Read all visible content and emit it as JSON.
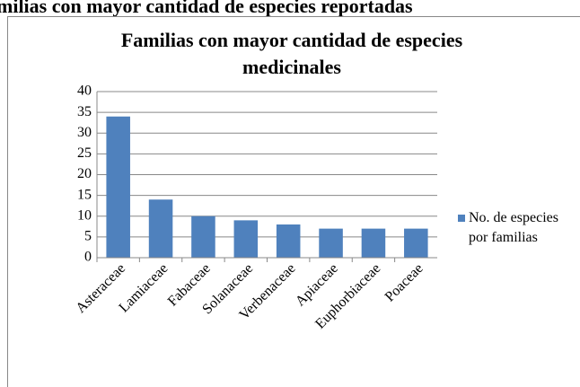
{
  "heading": "milias con mayor cantidad de especies reportadas",
  "chart_data": {
    "type": "bar",
    "title": "Familias con mayor cantidad de especies medicinales",
    "categories": [
      "Asteraceae",
      "Lamiaceae",
      "Fabaceae",
      "Solanaceae",
      "Verbenaceae",
      "Apiaceae",
      "Euphorbiaceae",
      "Poaceae"
    ],
    "series": [
      {
        "name": "No. de especies por familias",
        "color": "#4f81bd",
        "values": [
          34,
          14,
          10,
          9,
          8,
          7,
          7,
          7
        ]
      }
    ],
    "ylim": [
      0,
      40
    ],
    "yticks": [
      0,
      5,
      10,
      15,
      20,
      25,
      30,
      35,
      40
    ],
    "grid": true,
    "legend": "right"
  }
}
